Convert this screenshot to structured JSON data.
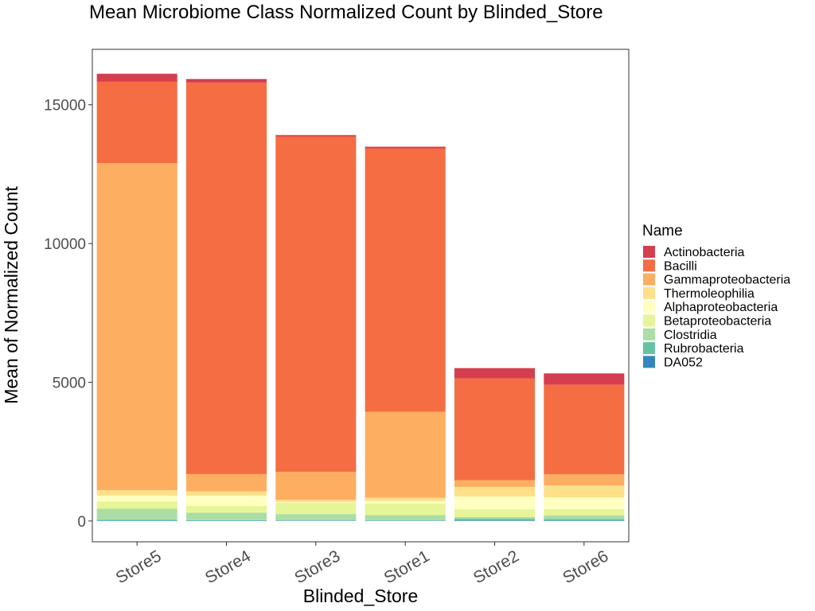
{
  "chart_data": {
    "type": "bar",
    "stacked": true,
    "title": "Mean Microbiome Class Normalized Count by Blinded_Store",
    "xlabel": "Blinded_Store",
    "ylabel": "Mean of Normalized Count",
    "ylim": [
      -750,
      17000
    ],
    "yticks": [
      0,
      5000,
      10000,
      15000
    ],
    "grid": false,
    "legend_position": "right",
    "legend_title": "Name",
    "categories": [
      "Store5",
      "Store4",
      "Store3",
      "Store1",
      "Store2",
      "Store6"
    ],
    "series": [
      {
        "name": "DA052",
        "color": "#3288BD",
        "values": [
          10,
          10,
          10,
          10,
          20,
          10
        ]
      },
      {
        "name": "Rubrobacteria",
        "color": "#66C2A5",
        "values": [
          30,
          20,
          10,
          10,
          60,
          60
        ]
      },
      {
        "name": "Clostridia",
        "color": "#ABDDA4",
        "values": [
          400,
          270,
          230,
          190,
          60,
          130
        ]
      },
      {
        "name": "Betaproteobacteria",
        "color": "#E6F598",
        "values": [
          260,
          240,
          410,
          420,
          280,
          230
        ]
      },
      {
        "name": "Alphaproteobacteria",
        "color": "#FFFFBF",
        "values": [
          210,
          370,
          20,
          90,
          460,
          420
        ]
      },
      {
        "name": "Thermoleophilia",
        "color": "#FEE08B",
        "values": [
          200,
          160,
          80,
          120,
          350,
          430
        ]
      },
      {
        "name": "Gammaproteobacteria",
        "color": "#FDAE61",
        "values": [
          11790,
          620,
          1010,
          3100,
          240,
          400
        ]
      },
      {
        "name": "Bacilli",
        "color": "#F46D43",
        "values": [
          2930,
          14110,
          12090,
          9490,
          3670,
          3230
        ]
      },
      {
        "name": "Actinobacteria",
        "color": "#D53E4F",
        "values": [
          290,
          130,
          50,
          60,
          370,
          410
        ]
      }
    ]
  }
}
